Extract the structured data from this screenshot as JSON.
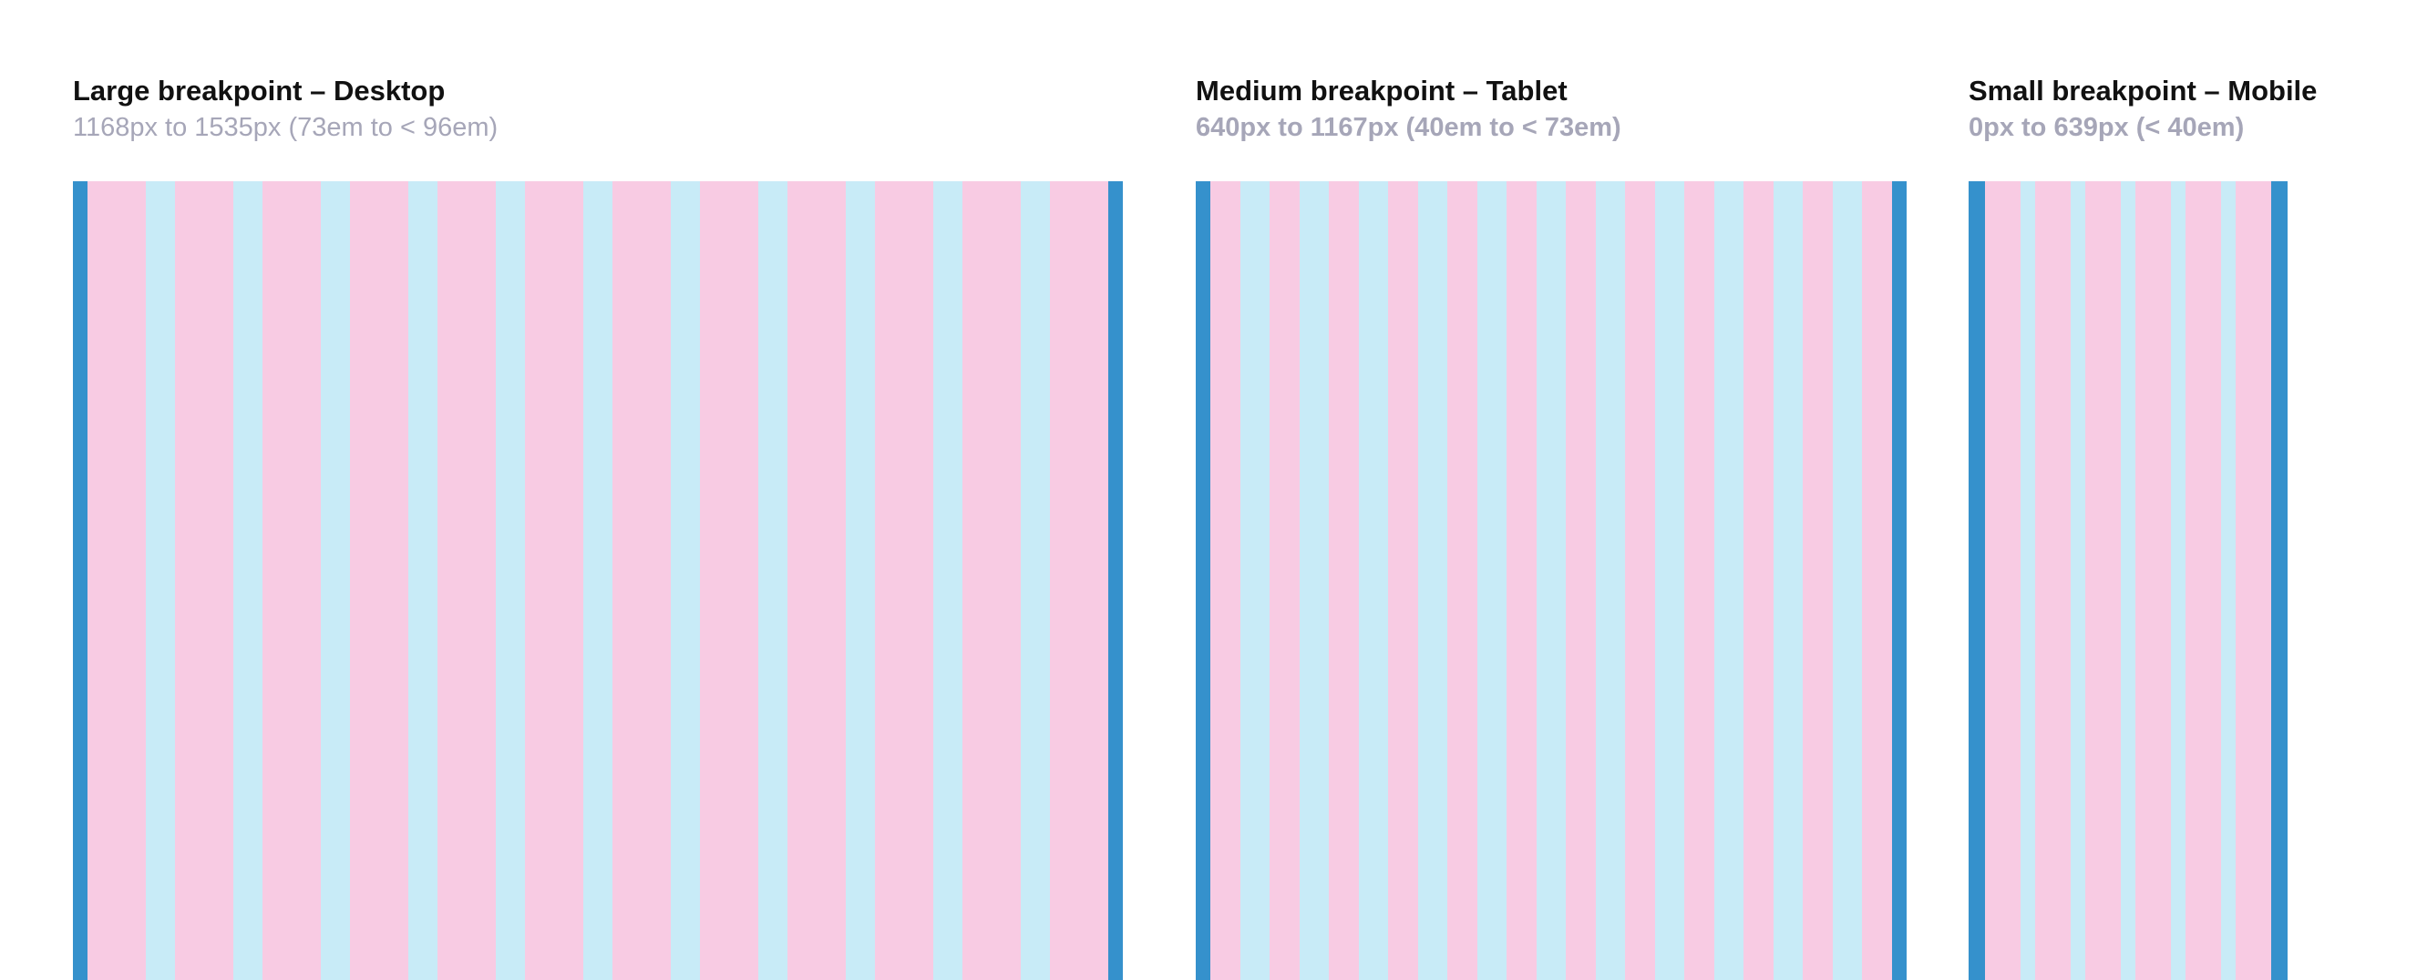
{
  "colors": {
    "margin": "#3591cc",
    "column": "#f8cbe3",
    "gutter": "#c8ebf7",
    "title": "#111111",
    "subtitle": "#a6a6b8"
  },
  "panels": [
    {
      "title": "Large breakpoint – Desktop",
      "range": "1168px to 1535px (73em to < 96em)",
      "columns": 12
    },
    {
      "title": "Medium breakpoint – Tablet",
      "range": "640px to 1167px (40em to < 73em)",
      "columns": 12
    },
    {
      "title": "Small breakpoint – Mobile",
      "range": "0px to 639px (< 40em)",
      "columns": 6
    }
  ]
}
